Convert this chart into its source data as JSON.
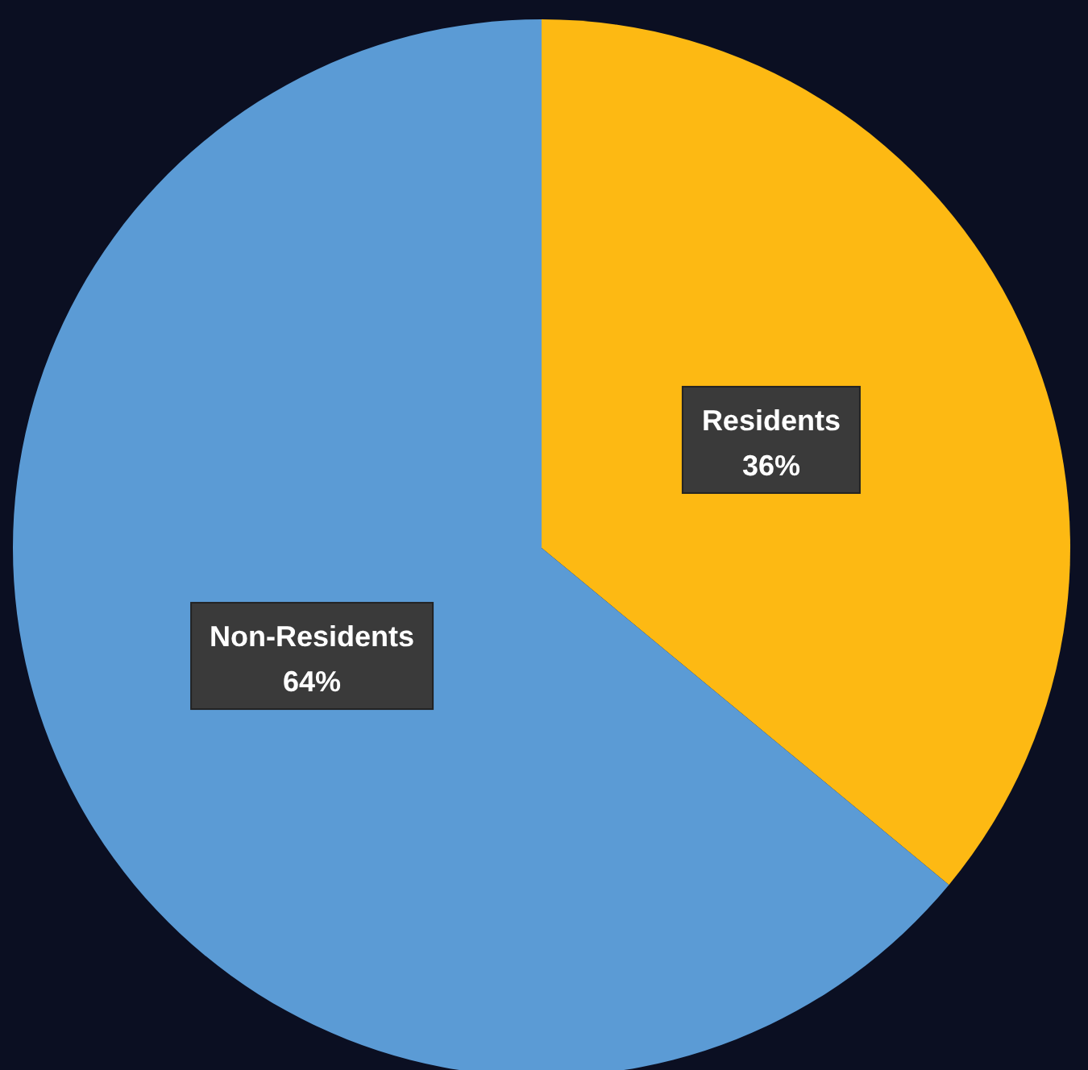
{
  "chart_data": {
    "type": "pie",
    "categories": [
      "Residents",
      "Non-Residents"
    ],
    "values": [
      36,
      64
    ],
    "colors": [
      "#fdb913",
      "#5b9bd5"
    ],
    "value_labels": [
      "36%",
      "64%"
    ]
  }
}
